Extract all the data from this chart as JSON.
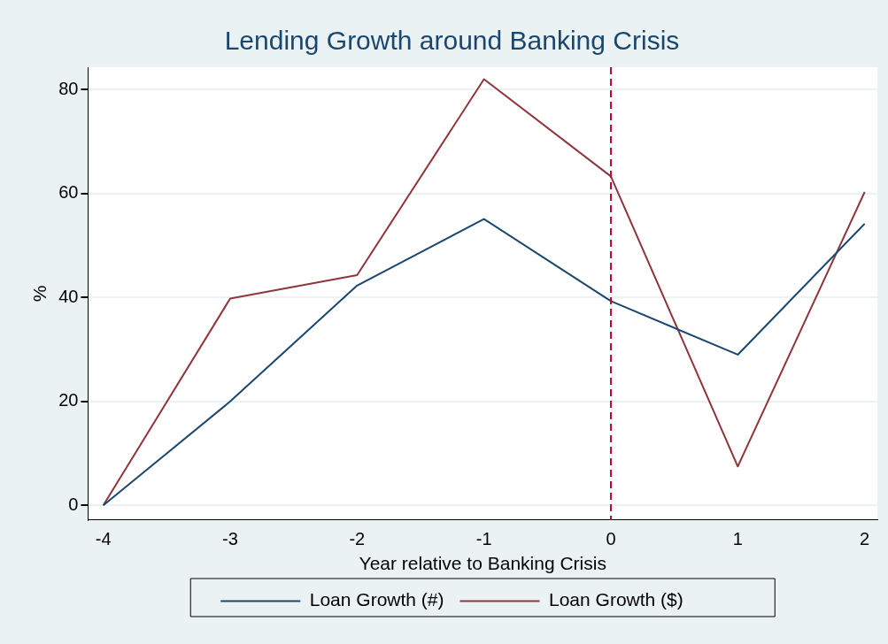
{
  "chart_data": {
    "type": "line",
    "title": "Lending Growth around Banking Crisis",
    "xlabel": "Year relative to Banking Crisis",
    "ylabel": "%",
    "x": [
      -4,
      -3,
      -2,
      -1,
      0,
      1,
      2
    ],
    "series": [
      {
        "name": "Loan Growth (#)",
        "color": "#1a476f",
        "values": [
          0,
          20,
          42.3,
          55.1,
          39.3,
          29,
          54.2
        ]
      },
      {
        "name": "Loan Growth ($)",
        "color": "#90353b",
        "values": [
          0,
          39.8,
          44.3,
          82,
          63.3,
          7.5,
          60.3
        ]
      }
    ],
    "xlim": [
      -4.12,
      2.1
    ],
    "xticks": [
      -4,
      -3,
      -2,
      -1,
      0,
      1,
      2
    ],
    "ylim": [
      -2.8,
      84.3
    ],
    "yticks": [
      0,
      20,
      40,
      60,
      80
    ],
    "ref_lines": [
      {
        "axis": "x",
        "value": 0,
        "color": "#c10534",
        "line_style": "dashed"
      }
    ],
    "grid": "y",
    "legend": "bottom",
    "marker": "none",
    "line_style": "solid"
  }
}
